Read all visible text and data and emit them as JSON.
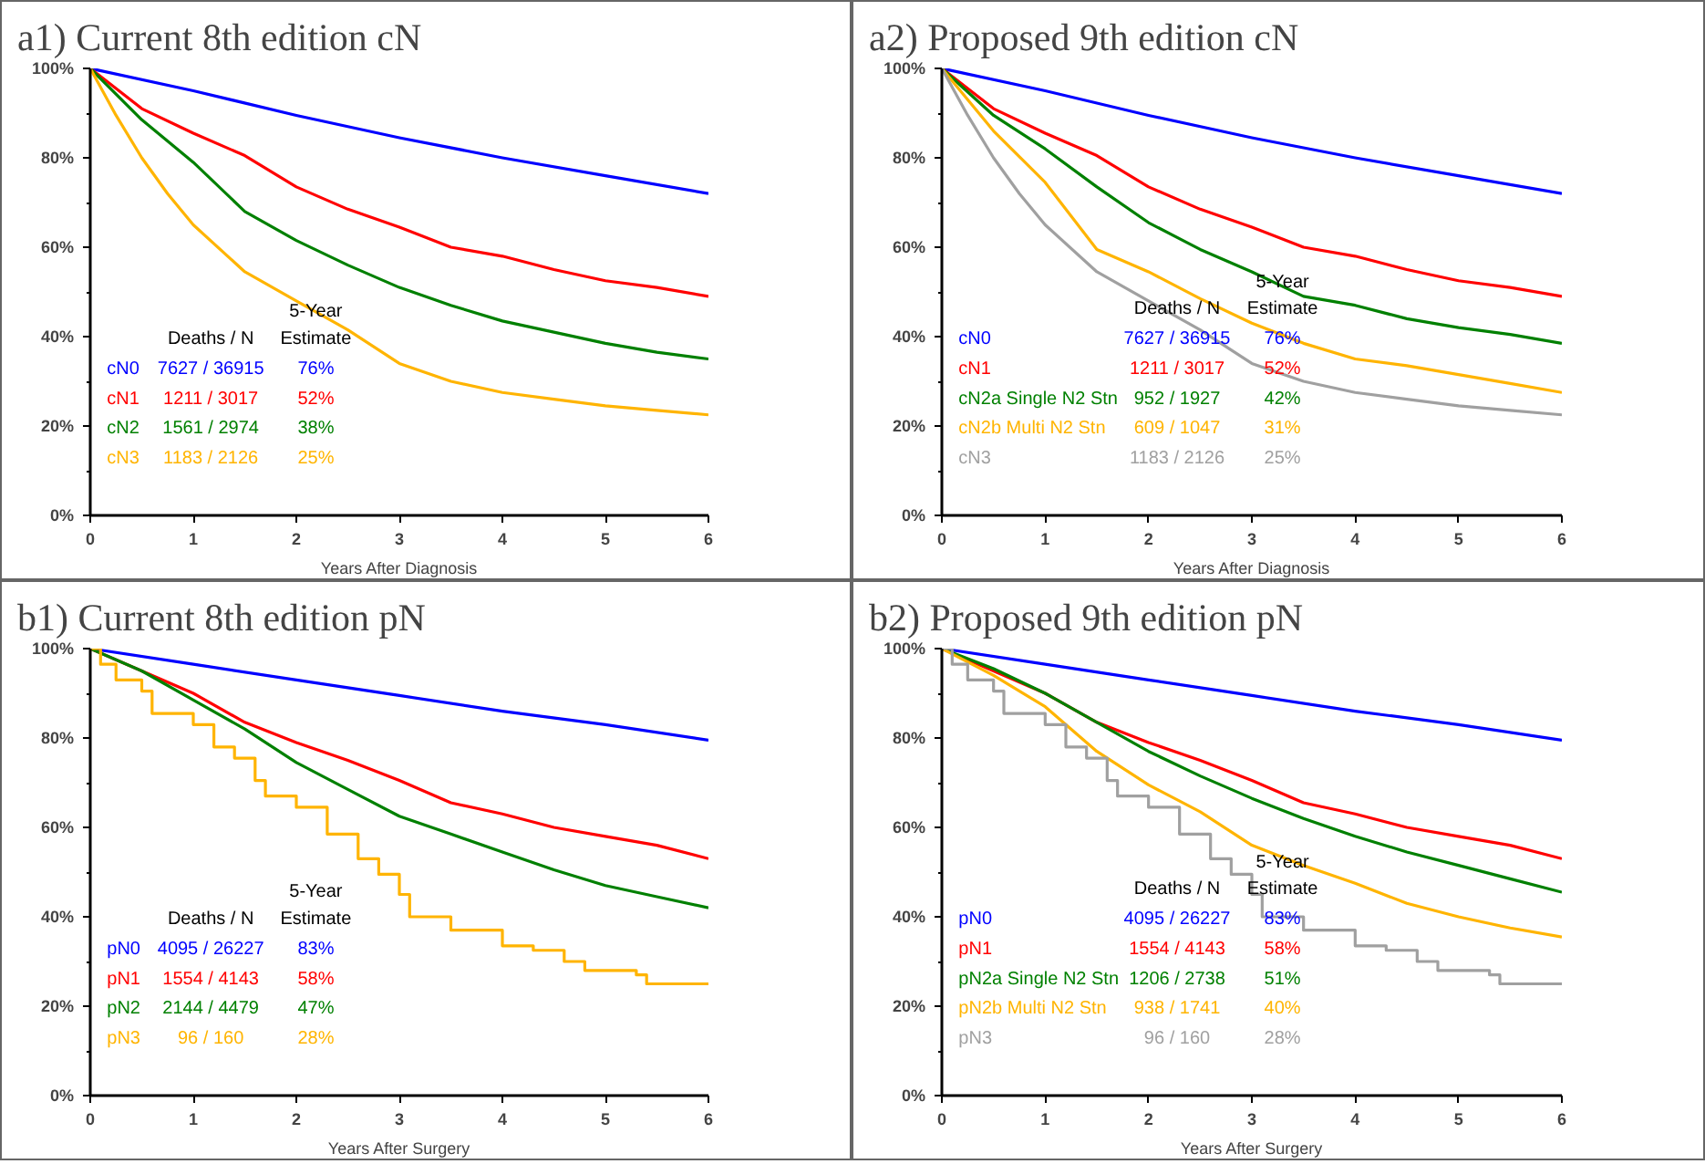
{
  "chart_data": [
    {
      "type": "line",
      "title": "a1) Current 8th edition cN",
      "xlabel": "Years After Diagnosis",
      "xlim": [
        0,
        6
      ],
      "ylim": [
        0,
        100
      ],
      "xticks": [
        0,
        1,
        2,
        3,
        4,
        5,
        6
      ],
      "yticks": [
        {
          "value": 0,
          "label": "0%"
        },
        {
          "value": 10,
          "label": null
        },
        {
          "value": 20,
          "label": "20%"
        },
        {
          "value": 30,
          "label": null
        },
        {
          "value": 40,
          "label": "40%"
        },
        {
          "value": 50,
          "label": null
        },
        {
          "value": 60,
          "label": "60%"
        },
        {
          "value": 70,
          "label": null
        },
        {
          "value": 80,
          "label": "80%"
        },
        {
          "value": 90,
          "label": null
        },
        {
          "value": 100,
          "label": "100%"
        }
      ],
      "grid": false,
      "legend": "bottom left",
      "x": [
        0,
        0.5,
        1,
        1.5,
        2,
        2.5,
        3,
        3.5,
        4,
        4.5,
        5,
        5.5,
        6
      ],
      "series": [
        {
          "name": "cN0",
          "color": "#0000ff",
          "x": [
            0,
            1,
            2,
            3,
            4,
            5,
            6
          ],
          "values": [
            100,
            95,
            89.5,
            84.5,
            80,
            76,
            72
          ]
        },
        {
          "name": "cN1",
          "color": "#ff0000",
          "values": [
            100,
            91,
            85.5,
            80.5,
            73.5,
            68.5,
            64.5,
            60,
            58,
            55,
            52.5,
            51,
            49
          ]
        },
        {
          "name": "cN2",
          "color": "#008000",
          "values": [
            100,
            88.5,
            79,
            68,
            61.5,
            56,
            51,
            47,
            43.5,
            41,
            38.5,
            36.5,
            35
          ]
        },
        {
          "name": "cN3",
          "color": "#ffb400",
          "x": [
            0,
            0.25,
            0.5,
            0.75,
            1,
            1.5,
            2,
            2.5,
            3,
            3.5,
            4,
            4.5,
            5,
            5.5,
            6
          ],
          "values": [
            100,
            89.5,
            80,
            72,
            65,
            54.5,
            48,
            41.5,
            34,
            30,
            27.5,
            26,
            24.5,
            23.5,
            22.5
          ]
        }
      ],
      "annotations": [
        "Deaths / N",
        "5-Year Estimate",
        "7627 / 36915",
        "76%",
        "1211 / 3017",
        "52%",
        "1561 / 2974",
        "38%",
        "1183 / 2126",
        "25%"
      ]
    },
    {
      "type": "line",
      "title": "a2) Proposed 9th edition cN",
      "xlabel": "Years After Diagnosis",
      "xlim": [
        0,
        6
      ],
      "ylim": [
        0,
        100
      ],
      "xticks": [
        0,
        1,
        2,
        3,
        4,
        5,
        6
      ],
      "yticks": [
        {
          "value": 0,
          "label": "0%"
        },
        {
          "value": 10,
          "label": null
        },
        {
          "value": 20,
          "label": "20%"
        },
        {
          "value": 30,
          "label": null
        },
        {
          "value": 40,
          "label": "40%"
        },
        {
          "value": 50,
          "label": null
        },
        {
          "value": 60,
          "label": "60%"
        },
        {
          "value": 70,
          "label": null
        },
        {
          "value": 80,
          "label": "80%"
        },
        {
          "value": 90,
          "label": null
        },
        {
          "value": 100,
          "label": "100%"
        }
      ],
      "grid": false,
      "legend": "bottom left",
      "x": [
        0,
        0.5,
        1,
        1.5,
        2,
        2.5,
        3,
        3.5,
        4,
        4.5,
        5,
        5.5,
        6
      ],
      "series": [
        {
          "name": "cN0",
          "color": "#0000ff",
          "x": [
            0,
            1,
            2,
            3,
            4,
            5,
            6
          ],
          "values": [
            100,
            95,
            89.5,
            84.5,
            80,
            76,
            72
          ]
        },
        {
          "name": "cN1",
          "color": "#ff0000",
          "values": [
            100,
            91,
            85.5,
            80.5,
            73.5,
            68.5,
            64.5,
            60,
            58,
            55,
            52.5,
            51,
            49
          ]
        },
        {
          "name": "cN2a Single N2 Stn",
          "color": "#008000",
          "values": [
            100,
            89.5,
            82,
            73.5,
            65.5,
            59.5,
            54.5,
            49,
            47,
            44,
            42,
            40.5,
            38.5
          ]
        },
        {
          "name": "cN2b Multi N2 Stn",
          "color": "#ffb400",
          "values": [
            100,
            86,
            74.5,
            59.5,
            54.5,
            48.5,
            43,
            38.5,
            35,
            33.5,
            31.5,
            29.5,
            27.5
          ]
        },
        {
          "name": "cN3",
          "color": "#a0a0a0",
          "x": [
            0,
            0.25,
            0.5,
            0.75,
            1,
            1.5,
            2,
            2.5,
            3,
            3.5,
            4,
            4.5,
            5,
            5.5,
            6
          ],
          "values": [
            100,
            89.5,
            80,
            72,
            65,
            54.5,
            48,
            41.5,
            34,
            30,
            27.5,
            26,
            24.5,
            23.5,
            22.5
          ]
        }
      ],
      "annotations": [
        "Deaths / N",
        "5-Year Estimate",
        "7627 / 36915",
        "76%",
        "1211 / 3017",
        "52%",
        "952 / 1927",
        "42%",
        "609 / 1047",
        "31%",
        "1183 / 2126",
        "25%"
      ]
    },
    {
      "type": "line",
      "title": "b1) Current 8th edition pN",
      "xlabel": "Years After Surgery",
      "xlim": [
        0,
        6
      ],
      "ylim": [
        0,
        100
      ],
      "xticks": [
        0,
        1,
        2,
        3,
        4,
        5,
        6
      ],
      "yticks": [
        {
          "value": 0,
          "label": "0%"
        },
        {
          "value": 10,
          "label": null
        },
        {
          "value": 20,
          "label": "20%"
        },
        {
          "value": 30,
          "label": null
        },
        {
          "value": 40,
          "label": "40%"
        },
        {
          "value": 50,
          "label": null
        },
        {
          "value": 60,
          "label": "60%"
        },
        {
          "value": 70,
          "label": null
        },
        {
          "value": 80,
          "label": "80%"
        },
        {
          "value": 90,
          "label": null
        },
        {
          "value": 100,
          "label": "100%"
        }
      ],
      "grid": false,
      "legend": "bottom left",
      "x": [
        0,
        0.5,
        1,
        1.5,
        2,
        2.5,
        3,
        3.5,
        4,
        4.5,
        5,
        5.5,
        6
      ],
      "series": [
        {
          "name": "pN0",
          "color": "#0000ff",
          "x": [
            0,
            1,
            2,
            3,
            4,
            5,
            6
          ],
          "values": [
            100,
            96.5,
            93,
            89.5,
            86,
            83,
            79.5
          ]
        },
        {
          "name": "pN1",
          "color": "#ff0000",
          "values": [
            100,
            95,
            90,
            83.5,
            79,
            75,
            70.5,
            65.5,
            63,
            60,
            58,
            56,
            53
          ]
        },
        {
          "name": "pN2",
          "color": "#008000",
          "values": [
            100,
            95,
            88.5,
            82,
            74.5,
            68.5,
            62.5,
            58.5,
            54.5,
            50.5,
            47,
            44.5,
            42
          ]
        },
        {
          "name": "pN3",
          "color": "#ffb400",
          "type": "step",
          "x": [
            0,
            0.1,
            0.25,
            0.5,
            0.6,
            1,
            1.2,
            1.4,
            1.6,
            1.7,
            2,
            2.3,
            2.6,
            2.8,
            3,
            3.1,
            3.5,
            4,
            4.3,
            4.6,
            4.8,
            5.3,
            5.4,
            6
          ],
          "values": [
            100,
            96.5,
            93,
            90.5,
            85.5,
            83,
            78,
            75.5,
            70.5,
            67,
            64.5,
            58.5,
            53,
            49.5,
            45,
            40,
            37,
            33.5,
            32.5,
            30,
            28,
            27,
            25,
            25
          ]
        }
      ],
      "annotations": [
        "Deaths / N",
        "5-Year Estimate",
        "4095 / 26227",
        "83%",
        "1554 / 4143",
        "58%",
        "2144 / 4479",
        "47%",
        "96 / 160",
        "28%"
      ]
    },
    {
      "type": "line",
      "title": "b2) Proposed 9th edition pN",
      "xlabel": "Years After Surgery",
      "xlim": [
        0,
        6
      ],
      "ylim": [
        0,
        100
      ],
      "xticks": [
        0,
        1,
        2,
        3,
        4,
        5,
        6
      ],
      "yticks": [
        {
          "value": 0,
          "label": "0%"
        },
        {
          "value": 10,
          "label": null
        },
        {
          "value": 20,
          "label": "20%"
        },
        {
          "value": 30,
          "label": null
        },
        {
          "value": 40,
          "label": "40%"
        },
        {
          "value": 50,
          "label": null
        },
        {
          "value": 60,
          "label": "60%"
        },
        {
          "value": 70,
          "label": null
        },
        {
          "value": 80,
          "label": "80%"
        },
        {
          "value": 90,
          "label": null
        },
        {
          "value": 100,
          "label": "100%"
        }
      ],
      "grid": false,
      "legend": "bottom left",
      "x": [
        0,
        0.5,
        1,
        1.5,
        2,
        2.5,
        3,
        3.5,
        4,
        4.5,
        5,
        5.5,
        6
      ],
      "series": [
        {
          "name": "pN0",
          "color": "#0000ff",
          "x": [
            0,
            1,
            2,
            3,
            4,
            5,
            6
          ],
          "values": [
            100,
            96.5,
            93,
            89.5,
            86,
            83,
            79.5
          ]
        },
        {
          "name": "pN1",
          "color": "#ff0000",
          "values": [
            100,
            95,
            90,
            83.5,
            79,
            75,
            70.5,
            65.5,
            63,
            60,
            58,
            56,
            53
          ]
        },
        {
          "name": "pN2a Single N2 Stn",
          "color": "#008000",
          "values": [
            100,
            95.5,
            90,
            83.5,
            77,
            71.5,
            66.5,
            62,
            58,
            54.5,
            51.5,
            48.5,
            45.5
          ]
        },
        {
          "name": "pN2b Multi N2 Stn",
          "color": "#ffb400",
          "values": [
            100,
            94,
            87,
            77,
            69.5,
            63.5,
            56,
            51.5,
            47.5,
            43,
            40,
            37.5,
            35.5
          ]
        },
        {
          "name": "pN3",
          "color": "#a0a0a0",
          "type": "step",
          "x": [
            0,
            0.1,
            0.25,
            0.5,
            0.6,
            1,
            1.2,
            1.4,
            1.6,
            1.7,
            2,
            2.3,
            2.6,
            2.8,
            3,
            3.1,
            3.5,
            4,
            4.3,
            4.6,
            4.8,
            5.3,
            5.4,
            6
          ],
          "values": [
            100,
            96.5,
            93,
            90.5,
            85.5,
            83,
            78,
            75.5,
            70.5,
            67,
            64.5,
            58.5,
            53,
            49.5,
            45,
            40,
            37,
            33.5,
            32.5,
            30,
            28,
            27,
            25,
            25
          ]
        }
      ],
      "annotations": [
        "Deaths / N",
        "5-Year Estimate",
        "4095 / 26227",
        "83%",
        "1554 / 4143",
        "58%",
        "1206 / 2738",
        "51%",
        "938 / 1741",
        "40%",
        "96 / 160",
        "28%"
      ]
    }
  ]
}
